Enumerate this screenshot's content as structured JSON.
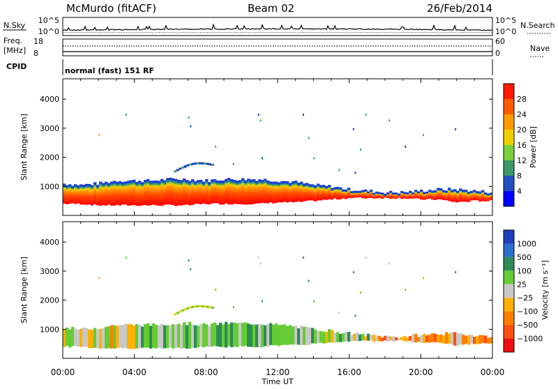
{
  "header": {
    "station": "McMurdo (fitACF)",
    "beam": "Beam 02",
    "date": "26/Feb/2014"
  },
  "noise_panel": {
    "left_label": "N.Sky",
    "right_label": "N.Search",
    "left_ticks": [
      "10^5",
      "10^0"
    ],
    "right_ticks": [
      "10^5",
      "10^0"
    ]
  },
  "freq_panel": {
    "left_label_line1": "Freq.",
    "left_label_line2": "[MHz]",
    "left_ticks": [
      "18",
      "8"
    ],
    "right_label": "Nave",
    "right_ticks": [
      "60",
      "0"
    ]
  },
  "cpid": {
    "label": "CPID",
    "mode": "normal (fast) 151 RF"
  },
  "chart_data": [
    {
      "type": "heatmap",
      "name": "power-panel",
      "ylabel": "Slant Range [km]",
      "ylim": [
        0,
        4700
      ],
      "yticks": [
        "1000",
        "2000",
        "3000",
        "4000"
      ],
      "xlim": [
        0,
        24
      ],
      "colorbar": {
        "label": "Power [dB]",
        "ticks": [
          "4",
          "8",
          "12",
          "16",
          "20",
          "24",
          "28"
        ],
        "colors": [
          "#0000ff",
          "#2050c0",
          "#3a9a6a",
          "#7ccf3c",
          "#f0d000",
          "#ff9a00",
          "#ff5a00",
          "#ff1a00"
        ]
      },
      "main_echo_region": {
        "x_hours": [
          0,
          1,
          2,
          3,
          4,
          5,
          6,
          7,
          8,
          9,
          10,
          11,
          12,
          13,
          14,
          15,
          16,
          17,
          18,
          19,
          20,
          21,
          22,
          23,
          24
        ],
        "top_km": [
          1050,
          1000,
          1050,
          1150,
          1150,
          1150,
          1200,
          1200,
          1150,
          1200,
          1200,
          1200,
          1150,
          1100,
          1000,
          950,
          850,
          800,
          750,
          750,
          800,
          850,
          850,
          800,
          750
        ],
        "bottom_km": [
          400,
          400,
          350,
          350,
          350,
          350,
          350,
          350,
          400,
          400,
          400,
          400,
          450,
          450,
          500,
          550,
          600,
          600,
          600,
          600,
          550,
          550,
          450,
          500,
          500
        ]
      }
    },
    {
      "type": "heatmap",
      "name": "velocity-panel",
      "ylabel": "Slant Range [km]",
      "ylim": [
        0,
        4700
      ],
      "yticks": [
        "1000",
        "2000",
        "3000",
        "4000"
      ],
      "xlim": [
        0,
        24
      ],
      "xlabel": "Time UT",
      "xticks": [
        "00:00",
        "04:00",
        "08:00",
        "12:00",
        "16:00",
        "20:00",
        "00:00"
      ],
      "colorbar": {
        "label": "Velocity [m s⁻¹]",
        "ticks": [
          "1000",
          "500",
          "100",
          "25",
          "−25",
          "−100",
          "−500",
          "−1000"
        ],
        "colors": [
          "#1f3fbf",
          "#2a6fc9",
          "#2e8b57",
          "#66cc33",
          "#c8c8c8",
          "#ffb000",
          "#ff8000",
          "#ff5010",
          "#ee1010"
        ]
      },
      "main_echo_region": {
        "x_hours": [
          0,
          1,
          2,
          3,
          4,
          5,
          6,
          7,
          8,
          9,
          10,
          11,
          12,
          13,
          14,
          15,
          16,
          17,
          18,
          19,
          20,
          21,
          22,
          23,
          24
        ],
        "top_km": [
          1050,
          1000,
          1050,
          1150,
          1150,
          1150,
          1200,
          1200,
          1150,
          1200,
          1200,
          1200,
          1150,
          1100,
          1000,
          950,
          850,
          800,
          750,
          750,
          800,
          850,
          850,
          800,
          750
        ],
        "bottom_km": [
          400,
          400,
          350,
          350,
          350,
          350,
          350,
          350,
          400,
          400,
          400,
          400,
          450,
          450,
          500,
          550,
          600,
          600,
          600,
          600,
          550,
          550,
          450,
          500,
          500
        ]
      }
    }
  ]
}
